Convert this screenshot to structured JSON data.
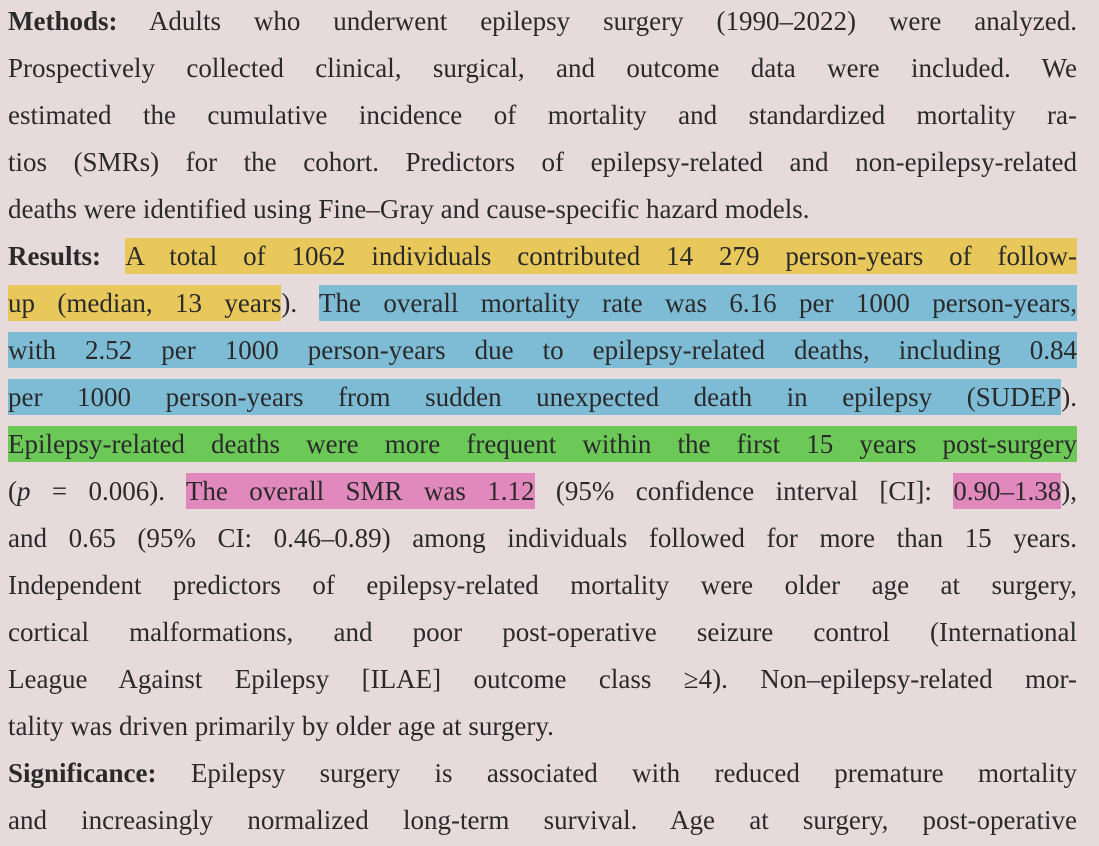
{
  "paragraphs": [
    {
      "lines": [
        [
          {
            "text": "Methods:",
            "style": "bold"
          },
          {
            "text": " Adults who underwent epilepsy surgery (1990–2022) were analyzed."
          }
        ],
        [
          {
            "text": "Prospectively collected clinical, surgical, and outcome data were included. We"
          }
        ],
        [
          {
            "text": "estimated the cumulative incidence of mortality and standardized mortality ra-"
          }
        ],
        [
          {
            "text": "tios (SMRs) for the cohort. Predictors of epilepsy-related and non-epilepsy-related"
          }
        ],
        [
          {
            "text": "deaths were identified using Fine–Gray and cause-specific hazard models."
          }
        ]
      ]
    },
    {
      "lines": [
        [
          {
            "text": "Results:",
            "style": "bold"
          },
          {
            "text": " "
          },
          {
            "text": "A total of 1062 individuals contributed 14 279 person-years of follow-",
            "highlight": "#e8c85a"
          }
        ],
        [
          {
            "text": "up (median, 13 years",
            "highlight": "#e8c85a"
          },
          {
            "text": "). "
          },
          {
            "text": "The overall mortality rate was 6.16 per 1000 person-years,",
            "highlight": "#7ebcd6"
          }
        ],
        [
          {
            "text": "with 2.52 per 1000 person-years due to epilepsy-related deaths, including 0.84",
            "highlight": "#7ebcd6"
          }
        ],
        [
          {
            "text": "per 1000 person-years from sudden unexpected death in epilepsy (SUDEP",
            "highlight": "#7ebcd6"
          },
          {
            "text": ")."
          }
        ],
        [
          {
            "text": "Epilepsy-related deaths were more frequent within the first 15 years post-surgery",
            "highlight": "#6cc957"
          }
        ],
        [
          {
            "text": "("
          },
          {
            "text": "p",
            "style": "italic"
          },
          {
            "text": " = 0.006). "
          },
          {
            "text": "The overall SMR was 1.12",
            "highlight": "#e189bd"
          },
          {
            "text": " (95% confidence interval [CI]: "
          },
          {
            "text": "0.90–1.38",
            "highlight": "#e189bd"
          },
          {
            "text": "),"
          }
        ],
        [
          {
            "text": "and 0.65 (95% CI: 0.46–0.89) among individuals followed for more than 15 years."
          }
        ],
        [
          {
            "text": "Independent predictors of epilepsy-related mortality were older age at surgery,"
          }
        ],
        [
          {
            "text": "cortical malformations, and poor post-operative seizure control (International"
          }
        ],
        [
          {
            "text": "League Against Epilepsy [ILAE] outcome class ≥4). Non–epilepsy-related mor-"
          }
        ],
        [
          {
            "text": "tality was driven primarily by older age at surgery."
          }
        ]
      ]
    },
    {
      "lines": [
        [
          {
            "text": "Significance:",
            "style": "bold"
          },
          {
            "text": " Epilepsy surgery is associated with reduced premature mortality"
          }
        ],
        [
          {
            "text": "and increasingly normalized long-term survival. Age at surgery, post-operative"
          }
        ]
      ]
    }
  ]
}
